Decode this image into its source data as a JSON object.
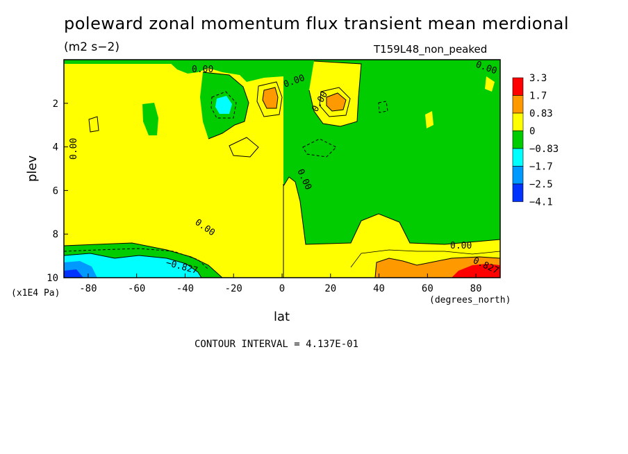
{
  "chart_data": {
    "type": "heatmap",
    "title": "poleward zonal momentum flux transient mean merdional",
    "units": "(m2 s−2)",
    "run_id": "T159L48_non_peaked",
    "xlabel": "lat",
    "ylabel": "plev",
    "x_unit": "(degrees_north)",
    "y_unit": "(x1E4 Pa)",
    "xlim": [
      -90,
      90
    ],
    "ylim": [
      10,
      0
    ],
    "x_ticks": [
      -80,
      -60,
      -40,
      -20,
      0,
      20,
      40,
      60,
      80
    ],
    "y_ticks": [
      2,
      4,
      6,
      8,
      10
    ],
    "contour_interval_text": "CONTOUR INTERVAL = 4.137E-01",
    "colorbar": {
      "labels": [
        "3.3",
        "1.7",
        "0.83",
        "0",
        "−0.83",
        "−1.7",
        "−2.5",
        "−4.1"
      ],
      "colors": [
        "#ff0000",
        "#ff9900",
        "#ffff00",
        "#00cc00",
        "#00ffff",
        "#0099ff",
        "#0033ff"
      ]
    },
    "contour_labels": [
      "0.00",
      "0.00",
      "0.00",
      "0.00",
      "0.00",
      "0.00",
      "0.00",
      "0.00",
      "−0.827",
      "0.827"
    ],
    "features": [
      {
        "lat": -88,
        "plev": 9.8,
        "value": -2.5
      },
      {
        "lat": -82,
        "plev": 9.6,
        "value": -1.7
      },
      {
        "lat": -48,
        "plev": 9.5,
        "value": -1.2
      },
      {
        "lat": -25,
        "plev": 2.2,
        "value": -1.2
      },
      {
        "lat": -5,
        "plev": 2.0,
        "value": 1.2
      },
      {
        "lat": 22,
        "plev": 2.1,
        "value": 1.2
      },
      {
        "lat": 45,
        "plev": 9.6,
        "value": 1.2
      },
      {
        "lat": 82,
        "plev": 9.7,
        "value": 2.5
      }
    ]
  }
}
